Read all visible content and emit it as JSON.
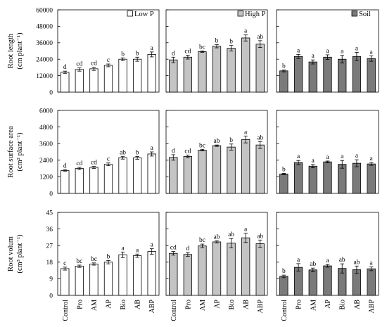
{
  "chart_data": {
    "type": "bar",
    "categories": [
      "Control",
      "Pro",
      "AM",
      "AP",
      "Bio",
      "AB",
      "ABP"
    ],
    "columns": [
      {
        "name": "Low P",
        "fill": "#ffffff"
      },
      {
        "name": "High P",
        "fill": "#c4c4c4"
      },
      {
        "name": "Soil",
        "fill": "#7a7a7a"
      }
    ],
    "rows": [
      {
        "ylabel_line1": "Root length",
        "ylabel_line2": "(cm plant⁻¹)",
        "ylim": [
          0,
          60000
        ],
        "ticks": [
          "0",
          "12000",
          "24000",
          "36000",
          "48000",
          "60000"
        ],
        "panels": [
          {
            "values": [
              14500,
              16500,
              17000,
              19500,
              24000,
              24000,
              27500
            ],
            "errors": [
              800,
              1200,
              1200,
              1000,
              1000,
              1500,
              1800
            ],
            "letters": [
              "d",
              "cd",
              "cd",
              "c",
              "b",
              "b",
              "a"
            ]
          },
          {
            "values": [
              23500,
              25500,
              29500,
              33500,
              32000,
              39500,
              35000
            ],
            "errors": [
              2000,
              1400,
              500,
              1200,
              2000,
              2200,
              2500
            ],
            "letters": [
              "d",
              "cd",
              "bc",
              "b",
              "b",
              "a",
              "ab"
            ]
          },
          {
            "values": [
              15500,
              26000,
              22000,
              25500,
              24000,
              26000,
              24500
            ],
            "errors": [
              700,
              1500,
              1500,
              1700,
              2800,
              3000,
              2000
            ],
            "letters": [
              "b",
              "a",
              "a",
              "a",
              "a",
              "a",
              "a"
            ]
          }
        ]
      },
      {
        "ylabel_line1": "Root surface area",
        "ylabel_line2": "(cm² plant⁻¹)",
        "ylim": [
          0,
          6000
        ],
        "ticks": [
          "0",
          "1200",
          "2400",
          "3600",
          "4800",
          "6000"
        ],
        "panels": [
          {
            "values": [
              1650,
              1800,
              1880,
              2100,
              2580,
              2570,
              2850
            ],
            "errors": [
              60,
              80,
              70,
              100,
              100,
              100,
              150
            ],
            "letters": [
              "d",
              "cd",
              "cd",
              "c",
              "ab",
              "b",
              "a"
            ]
          },
          {
            "values": [
              2600,
              2670,
              3130,
              3450,
              3350,
              3900,
              3500
            ],
            "errors": [
              200,
              100,
              60,
              50,
              220,
              250,
              250
            ],
            "letters": [
              "d",
              "cd",
              "bc",
              "ab",
              "b",
              "a",
              "ab"
            ]
          },
          {
            "values": [
              1400,
              2230,
              1970,
              2280,
              2100,
              2180,
              2130
            ],
            "errors": [
              50,
              150,
              120,
              60,
              280,
              250,
              100
            ],
            "letters": [
              "b",
              "a",
              "a",
              "a",
              "a",
              "a",
              "a"
            ]
          }
        ]
      },
      {
        "ylabel_line1": "Root volum",
        "ylabel_line2": "(cm³ plant⁻¹)",
        "ylim": [
          0,
          45
        ],
        "ticks": [
          "0",
          "9",
          "18",
          "27",
          "36",
          "45"
        ],
        "panels": [
          {
            "values": [
              14.5,
              15.8,
              17,
              18,
              22,
              21.5,
              23.8
            ],
            "errors": [
              0.8,
              0.6,
              0.6,
              0.9,
              1.5,
              0.9,
              1.5
            ],
            "letters": [
              "c",
              "bc",
              "bc",
              "b",
              "a",
              "a",
              "a"
            ]
          },
          {
            "values": [
              22.8,
              22.2,
              26.8,
              29,
              28.3,
              31.2,
              28
            ],
            "errors": [
              1,
              1,
              1,
              0.6,
              2.5,
              2.5,
              2
            ],
            "letters": [
              "cd",
              "d",
              "bc",
              "ab",
              "ab",
              "a",
              "ab"
            ]
          },
          {
            "values": [
              10.3,
              15.2,
              13.8,
              16,
              14.6,
              13.9,
              14.4
            ],
            "errors": [
              0.7,
              2,
              1,
              0.7,
              2.5,
              2,
              1
            ],
            "letters": [
              "b",
              "a",
              "ab",
              "a",
              "ab",
              "ab",
              "a"
            ]
          }
        ]
      }
    ]
  }
}
